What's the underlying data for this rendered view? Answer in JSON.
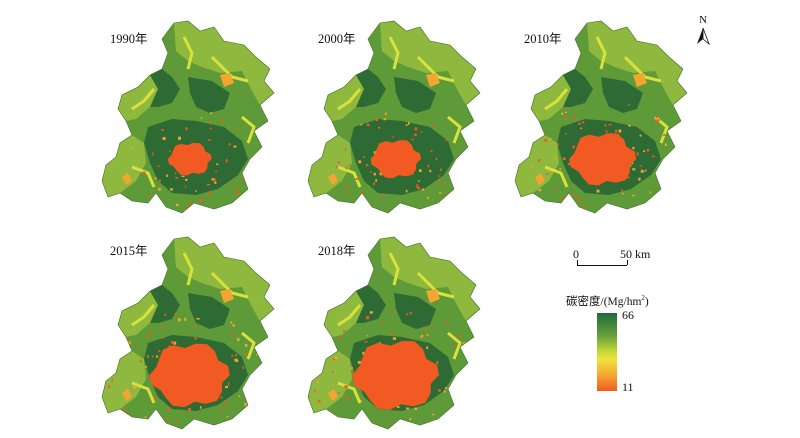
{
  "panels": [
    {
      "label": "1990年",
      "urban_level": 0.25
    },
    {
      "label": "2000年",
      "urban_level": 0.35
    },
    {
      "label": "2010年",
      "urban_level": 0.6
    },
    {
      "label": "2015年",
      "urban_level": 0.8
    },
    {
      "label": "2018年",
      "urban_level": 0.9
    }
  ],
  "north_arrow": {
    "label": "N"
  },
  "scale_bar": {
    "start": "0",
    "end": "50 km"
  },
  "legend": {
    "title": "碳密度/(Mg/hm",
    "title_sup": "2",
    "title_close": ")",
    "max": "66",
    "min": "11",
    "colors": [
      "#1f6b3a",
      "#6aa33b",
      "#c7d93a",
      "#f1e23a",
      "#f4a531",
      "#f15a22"
    ]
  }
}
